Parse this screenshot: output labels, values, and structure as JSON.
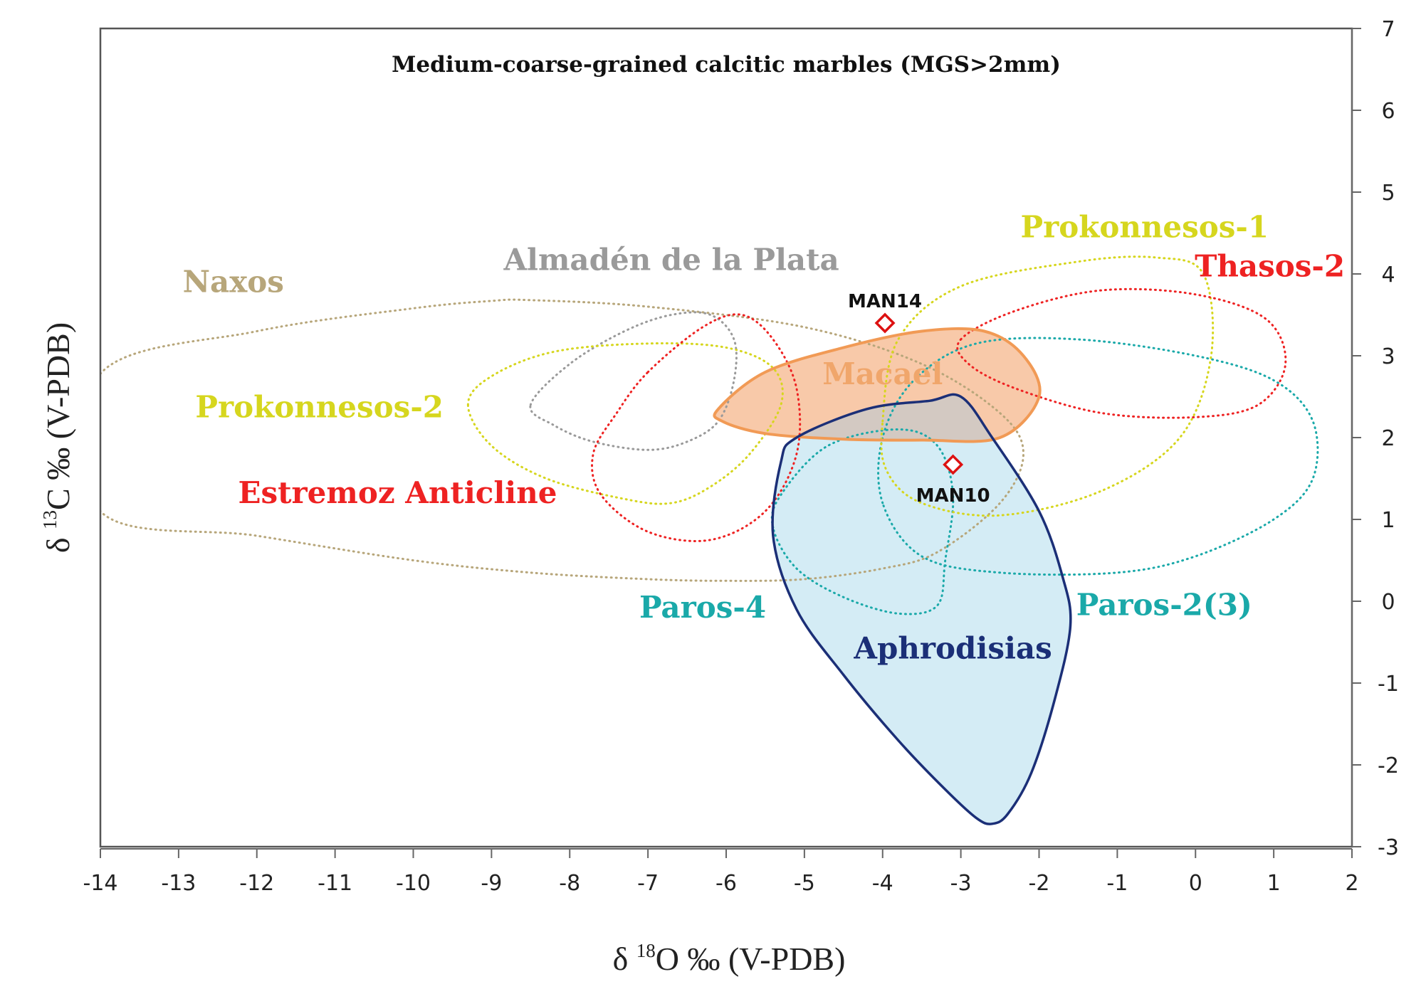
{
  "colors": {
    "naxos": "#b7a67a",
    "almaden": "#9a9a9a",
    "prokonnesos": "#d6d61e",
    "red": "#ee2222",
    "paros": "#1aa9a9",
    "macael_fill": "#f8c9a9",
    "macael_stroke": "#f19a55",
    "macael_text": "#f0a66b",
    "aphro_fill": "#d4ecf5",
    "aphro_stroke": "#1b2f77",
    "overlap_fill": "#d3c9c2",
    "marker": "#dd1111"
  },
  "chart_data": {
    "type": "scatter",
    "title": "Medium-coarse-grained calcitic marbles  (MGS>2mm)",
    "xlabel_parts": [
      "δ ",
      "18",
      "O ‰ (V-PDB)"
    ],
    "ylabel_parts": [
      "δ ",
      "13",
      "C ‰ (V-PDB)"
    ],
    "xlim": [
      -14,
      2
    ],
    "ylim": [
      -3,
      7
    ],
    "xticks": [
      "-14",
      "-13",
      "-12",
      "-11",
      "-10",
      "-9",
      "-8",
      "-7",
      "-6",
      "-5",
      "-4",
      "-3",
      "-2",
      "-1",
      "0",
      "1",
      "2"
    ],
    "yticks": [
      "-3",
      "-2",
      "-1",
      "0",
      "1",
      "2",
      "3",
      "4",
      "5",
      "6",
      "7"
    ],
    "points": [
      {
        "label": "MAN14",
        "x": -3.97,
        "y": 3.4
      },
      {
        "label": "MAN10",
        "x": -3.1,
        "y": 1.67
      }
    ],
    "regions": [
      {
        "name": "naxos",
        "label": "Naxos",
        "colorKey": "naxos",
        "label_at": [
          -12.3,
          3.78
        ],
        "outline": [
          [
            -14,
            2.78
          ],
          [
            -12,
            3.3
          ],
          [
            -10,
            3.58
          ],
          [
            -9,
            3.67
          ],
          [
            -8.5,
            3.68
          ],
          [
            -7,
            3.6
          ],
          [
            -5,
            3.35
          ],
          [
            -3.5,
            2.9
          ],
          [
            -2.5,
            2.3
          ],
          [
            -2.2,
            1.8
          ],
          [
            -2.5,
            1.2
          ],
          [
            -3.3,
            0.6
          ],
          [
            -4,
            0.4
          ],
          [
            -5,
            0.27
          ],
          [
            -6,
            0.25
          ],
          [
            -7,
            0.27
          ],
          [
            -8.5,
            0.35
          ],
          [
            -10,
            0.5
          ],
          [
            -12,
            0.8
          ],
          [
            -14,
            1.1
          ]
        ]
      },
      {
        "name": "almaden",
        "label": "Almadén de la Plata",
        "colorKey": "almaden",
        "label_at": [
          -6.7,
          4.05
        ],
        "outline": [
          [
            -8.5,
            2.4
          ],
          [
            -8,
            2.9
          ],
          [
            -7.3,
            3.3
          ],
          [
            -6.7,
            3.5
          ],
          [
            -6.2,
            3.5
          ],
          [
            -5.9,
            3.2
          ],
          [
            -5.9,
            2.7
          ],
          [
            -6.1,
            2.2
          ],
          [
            -6.5,
            1.95
          ],
          [
            -7,
            1.85
          ],
          [
            -7.7,
            1.95
          ],
          [
            -8.2,
            2.15
          ]
        ]
      },
      {
        "name": "prok2",
        "label": "Prokonnesos-2",
        "colorKey": "prokonnesos",
        "label_at": [
          -11.2,
          2.25
        ],
        "outline": [
          [
            -9.3,
            2.4
          ],
          [
            -9,
            2.75
          ],
          [
            -8.2,
            3.05
          ],
          [
            -7,
            3.15
          ],
          [
            -6,
            3.1
          ],
          [
            -5.4,
            2.85
          ],
          [
            -5.3,
            2.4
          ],
          [
            -5.7,
            1.8
          ],
          [
            -6.2,
            1.4
          ],
          [
            -6.7,
            1.2
          ],
          [
            -7.3,
            1.25
          ],
          [
            -8.3,
            1.5
          ],
          [
            -9,
            1.9
          ]
        ]
      },
      {
        "name": "estremoz",
        "label": "Estremoz Anticline",
        "colorKey": "red",
        "label_at": [
          -10.2,
          1.2
        ],
        "outline": [
          [
            -7,
            2.8
          ],
          [
            -6.3,
            3.35
          ],
          [
            -5.8,
            3.5
          ],
          [
            -5.4,
            3.2
          ],
          [
            -5.1,
            2.6
          ],
          [
            -5.1,
            1.8
          ],
          [
            -5.5,
            1.1
          ],
          [
            -6.2,
            0.75
          ],
          [
            -7,
            0.85
          ],
          [
            -7.6,
            1.3
          ],
          [
            -7.7,
            1.8
          ],
          [
            -7.4,
            2.3
          ]
        ]
      },
      {
        "name": "macael",
        "label": "Macael",
        "colorKey": "macael_text",
        "label_at": [
          -4.0,
          2.65
        ],
        "outline": [
          [
            -6.1,
            2.35
          ],
          [
            -5.5,
            2.8
          ],
          [
            -4.5,
            3.1
          ],
          [
            -3.5,
            3.3
          ],
          [
            -2.7,
            3.3
          ],
          [
            -2.2,
            3.0
          ],
          [
            -2.0,
            2.5
          ],
          [
            -2.5,
            2.0
          ],
          [
            -3.5,
            1.97
          ],
          [
            -4.5,
            1.98
          ],
          [
            -5.5,
            2.05
          ],
          [
            -6.05,
            2.2
          ]
        ]
      },
      {
        "name": "aphrodisias",
        "label": "Aphrodisias",
        "colorKey": "aphro_stroke",
        "label_at": [
          -3.1,
          -0.7
        ],
        "outline": [
          [
            -5.3,
            1.7
          ],
          [
            -5.1,
            2.0
          ],
          [
            -4.2,
            2.35
          ],
          [
            -3.4,
            2.45
          ],
          [
            -3.0,
            2.5
          ],
          [
            -2.6,
            2.0
          ],
          [
            -2.0,
            1.1
          ],
          [
            -1.7,
            0.3
          ],
          [
            -1.6,
            -0.3
          ],
          [
            -1.8,
            -1.2
          ],
          [
            -2.1,
            -2.1
          ],
          [
            -2.4,
            -2.6
          ],
          [
            -2.6,
            -2.72
          ],
          [
            -2.8,
            -2.65
          ],
          [
            -3.2,
            -2.3
          ],
          [
            -3.8,
            -1.7
          ],
          [
            -4.5,
            -0.9
          ],
          [
            -5.1,
            -0.1
          ],
          [
            -5.4,
            0.8
          ]
        ]
      },
      {
        "name": "paros4",
        "label": "Paros-4",
        "colorKey": "paros",
        "label_at": [
          -6.3,
          -0.2
        ],
        "outline": [
          [
            -5.4,
            0.9
          ],
          [
            -5.3,
            1.3
          ],
          [
            -4.7,
            1.9
          ],
          [
            -3.8,
            2.1
          ],
          [
            -3.3,
            1.9
          ],
          [
            -3.1,
            1.3
          ],
          [
            -3.2,
            0.5
          ],
          [
            -3.3,
            -0.05
          ],
          [
            -3.8,
            -0.15
          ],
          [
            -4.5,
            0.05
          ],
          [
            -5.1,
            0.4
          ]
        ]
      },
      {
        "name": "paros23",
        "label": "Paros-2(3)",
        "colorKey": "paros",
        "label_at": [
          -0.4,
          -0.17
        ],
        "outline": [
          [
            -4.0,
            1.2
          ],
          [
            -4.0,
            2.0
          ],
          [
            -3.6,
            2.7
          ],
          [
            -2.8,
            3.15
          ],
          [
            -1.5,
            3.2
          ],
          [
            0,
            3.0
          ],
          [
            1,
            2.7
          ],
          [
            1.5,
            2.2
          ],
          [
            1.5,
            1.5
          ],
          [
            1,
            1.0
          ],
          [
            0,
            0.55
          ],
          [
            -1,
            0.35
          ],
          [
            -2.5,
            0.35
          ],
          [
            -3.5,
            0.55
          ]
        ]
      },
      {
        "name": "prok1",
        "label": "Prokonnesos-1",
        "colorKey": "prokonnesos",
        "label_at": [
          -0.65,
          4.45
        ],
        "outline": [
          [
            -4.0,
            2.2
          ],
          [
            -3.8,
            3.2
          ],
          [
            -3.0,
            3.85
          ],
          [
            -1.5,
            4.15
          ],
          [
            -0.5,
            4.2
          ],
          [
            0.1,
            4.0
          ],
          [
            0.2,
            3.0
          ],
          [
            -0.2,
            2.0
          ],
          [
            -1.2,
            1.35
          ],
          [
            -2.5,
            1.05
          ],
          [
            -3.5,
            1.2
          ],
          [
            -3.95,
            1.6
          ]
        ]
      },
      {
        "name": "thasos2",
        "label": "Thasos-2",
        "colorKey": "red",
        "label_at": [
          0.95,
          3.97
        ],
        "outline": [
          [
            -3.0,
            3.2
          ],
          [
            -2.3,
            3.55
          ],
          [
            -1.2,
            3.8
          ],
          [
            0,
            3.75
          ],
          [
            0.9,
            3.45
          ],
          [
            1.15,
            2.9
          ],
          [
            0.8,
            2.4
          ],
          [
            0,
            2.25
          ],
          [
            -1.2,
            2.3
          ],
          [
            -2.3,
            2.6
          ],
          [
            -2.9,
            2.9
          ]
        ]
      }
    ]
  }
}
